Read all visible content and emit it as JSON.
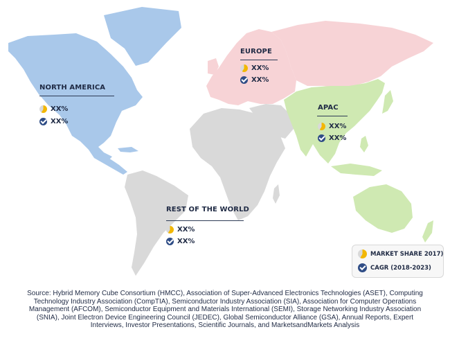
{
  "colors": {
    "north_america": "#a9c8ea",
    "europe": "#f7d3d6",
    "apac": "#cfe9b2",
    "rest_of_world": "#d9d9d9",
    "market_share_icon": "#f2b705",
    "cagr_icon": "#2f4d86",
    "text": "#1f2a44"
  },
  "regions": {
    "north_america": {
      "title": "NORTH AMERICA",
      "share": "XX%",
      "cagr": "XX%"
    },
    "europe": {
      "title": "EUROPE",
      "share": "XX%",
      "cagr": "XX%"
    },
    "apac": {
      "title": "APAC",
      "share": "XX%",
      "cagr": "XX%"
    },
    "rest_of_world": {
      "title": "REST OF THE WORLD",
      "share": "XX%",
      "cagr": "XX%"
    }
  },
  "legend": {
    "market_share": "MARKET SHARE 2017)",
    "cagr": "CAGR (2018-2023)",
    "market_share_icon": "pie-icon",
    "cagr_icon": "check-icon"
  },
  "source": "Source: Hybrid Memory Cube Consortium (HMCC), Association of Super-Advanced Electronics Technologies (ASET), Computing Technology Industry Association (CompTIA), Semiconductor Industry Association (SIA), Association for Computer Operations Management (AFCOM), Semiconductor Equipment and Materials International (SEMI), Storage Networking Industry Association (SNIA), Joint Electron Device Engineering Council (JEDEC), Global Semiconductor Alliance (GSA), Annual Reports, Expert Interviews, Investor Presentations, Scientific Journals, and MarketsandMarkets Analysis"
}
